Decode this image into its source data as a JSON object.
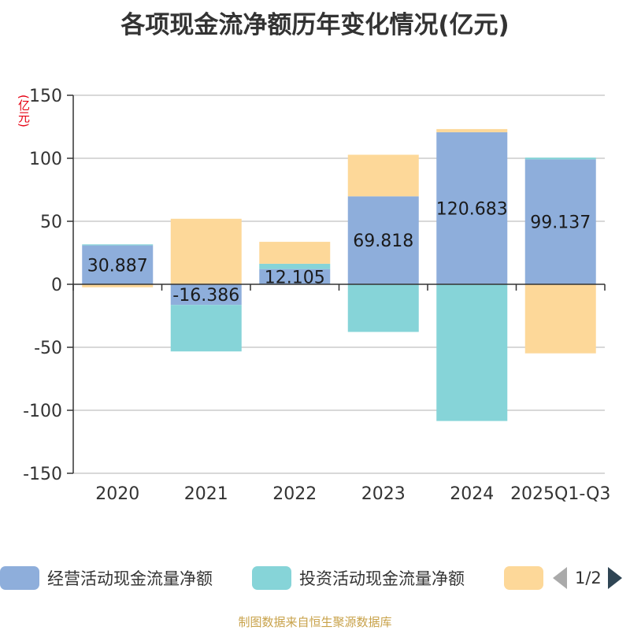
{
  "title": "各项现金流净额历年变化情况(亿元)",
  "unit_label": "(亿元)",
  "source": "制图数据来自恒生聚源数据库",
  "legend": {
    "pager_text": "1/2"
  },
  "chart_data": {
    "type": "bar",
    "stacked": true,
    "categories": [
      "2020",
      "2021",
      "2022",
      "2023",
      "2024",
      "2025Q1-Q3"
    ],
    "ylim": [
      -150,
      150
    ],
    "yticks": [
      150,
      100,
      50,
      0,
      -50,
      -100,
      -150
    ],
    "grid": true,
    "legend_position": "bottom",
    "series": [
      {
        "name": "经营活动现金流量净额",
        "color": "#8eaedb",
        "values": [
          30.887,
          -16.386,
          12.105,
          69.818,
          120.683,
          99.137
        ],
        "labels": [
          "30.887",
          "-16.386",
          "12.105",
          "69.818",
          "120.683",
          "99.137"
        ]
      },
      {
        "name": "投资活动现金流量净额",
        "color": "#86d4d8",
        "values": [
          0.8,
          -36.9,
          4.2,
          -37.8,
          -108.5,
          1.4
        ]
      },
      {
        "name": "",
        "color": "#fdd899",
        "values": [
          -2.4,
          52.0,
          17.4,
          33.0,
          2.5,
          -54.8
        ]
      }
    ]
  }
}
